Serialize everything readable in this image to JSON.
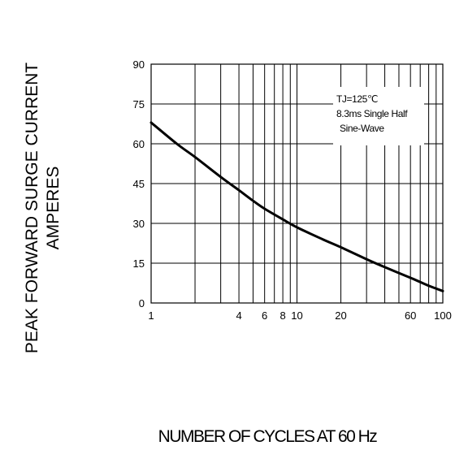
{
  "chart_data": {
    "type": "line",
    "xlabel": "NUMBER OF CYCLES AT 60 Hz",
    "ylabel": [
      "PEAK FORWARD SURGE CURRENT",
      "AMPERES"
    ],
    "x_scale": "log",
    "xlim": [
      1,
      100
    ],
    "ylim": [
      0,
      90
    ],
    "x_ticks": [
      1,
      4,
      6,
      8,
      10,
      20,
      60,
      100
    ],
    "x_tick_labels": [
      "1",
      "4",
      "6",
      "8",
      "10",
      "20",
      "60",
      "100"
    ],
    "y_ticks": [
      0,
      15,
      30,
      45,
      60,
      75,
      90
    ],
    "y_tick_labels": [
      "0",
      "15",
      "30",
      "45",
      "60",
      "75",
      "90"
    ],
    "grid": true,
    "annotation": {
      "lines": [
        "TJ=125℃",
        "8.3ms Single Half",
        "Sine-Wave"
      ],
      "placement": "top-right"
    },
    "series": [
      {
        "x": [
          1,
          1.5,
          2,
          3,
          4,
          5,
          6,
          8,
          10,
          15,
          20,
          30,
          40,
          60,
          80,
          100
        ],
        "y": [
          68,
          60,
          55,
          47.5,
          42.5,
          38.5,
          35.5,
          31.5,
          28.5,
          24,
          21,
          16.5,
          13.5,
          9.5,
          6.5,
          4.5
        ]
      }
    ]
  }
}
